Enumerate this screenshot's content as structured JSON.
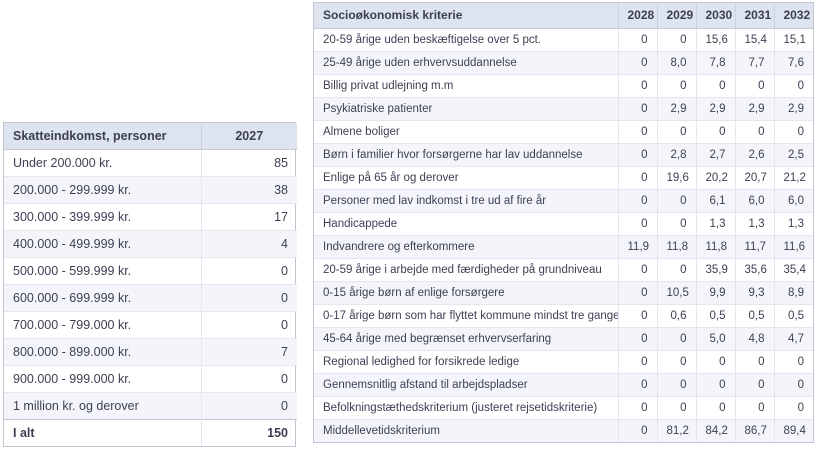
{
  "left_table": {
    "header": {
      "label": "Skatteindkomst, personer",
      "year": "2027"
    },
    "rows": [
      {
        "label": "Under 200.000 kr.",
        "value": "85"
      },
      {
        "label": "200.000 - 299.999 kr.",
        "value": "38"
      },
      {
        "label": "300.000 - 399.999 kr.",
        "value": "17"
      },
      {
        "label": "400.000 - 499.999 kr.",
        "value": "4"
      },
      {
        "label": "500.000 - 599.999 kr.",
        "value": "0"
      },
      {
        "label": "600.000 - 699.999 kr.",
        "value": "0"
      },
      {
        "label": "700.000 - 799.000 kr.",
        "value": "0"
      },
      {
        "label": "800.000 - 899.000 kr.",
        "value": "7"
      },
      {
        "label": "900.000 - 999.000 kr.",
        "value": "0"
      },
      {
        "label": "1 million kr. og derover",
        "value": "0"
      }
    ],
    "total": {
      "label": "I alt",
      "value": "150"
    }
  },
  "right_table": {
    "header": {
      "label": "Socioøkonomisk kriterie",
      "years": [
        "2028",
        "2029",
        "2030",
        "2031",
        "2032"
      ]
    },
    "rows": [
      {
        "label": "20-59 årige uden beskæftigelse over 5 pct.",
        "values": [
          "0",
          "0",
          "15,6",
          "15,4",
          "15,1"
        ]
      },
      {
        "label": "25-49 årige uden erhvervsuddannelse",
        "values": [
          "0",
          "8,0",
          "7,8",
          "7,7",
          "7,6"
        ]
      },
      {
        "label": "Billig privat udlejning m.m",
        "values": [
          "0",
          "0",
          "0",
          "0",
          "0"
        ]
      },
      {
        "label": "Psykiatriske patienter",
        "values": [
          "0",
          "2,9",
          "2,9",
          "2,9",
          "2,9"
        ]
      },
      {
        "label": "Almene boliger",
        "values": [
          "0",
          "0",
          "0",
          "0",
          "0"
        ]
      },
      {
        "label": "Børn i familier hvor forsørgerne har lav uddannelse",
        "values": [
          "0",
          "2,8",
          "2,7",
          "2,6",
          "2,5"
        ]
      },
      {
        "label": "Enlige på 65 år og derover",
        "values": [
          "0",
          "19,6",
          "20,2",
          "20,7",
          "21,2"
        ]
      },
      {
        "label": "Personer med lav indkomst i tre ud af fire år",
        "values": [
          "0",
          "0",
          "6,1",
          "6,0",
          "6,0"
        ]
      },
      {
        "label": "Handicappede",
        "values": [
          "0",
          "0",
          "1,3",
          "1,3",
          "1,3"
        ]
      },
      {
        "label": "Indvandrere og efterkommere",
        "values": [
          "11,9",
          "11,8",
          "11,8",
          "11,7",
          "11,6"
        ]
      },
      {
        "label": "20-59 årige i arbejde med færdigheder på grundniveau",
        "values": [
          "0",
          "0",
          "35,9",
          "35,6",
          "35,4"
        ]
      },
      {
        "label": "0-15 årige børn af enlige forsørgere",
        "values": [
          "0",
          "10,5",
          "9,9",
          "9,3",
          "8,9"
        ]
      },
      {
        "label": "0-17 årige børn som har flyttet kommune mindst tre gange",
        "values": [
          "0",
          "0,6",
          "0,5",
          "0,5",
          "0,5"
        ]
      },
      {
        "label": "45-64 årige med begrænset erhvervserfaring",
        "values": [
          "0",
          "0",
          "5,0",
          "4,8",
          "4,7"
        ]
      },
      {
        "label": "Regional ledighed for forsikrede ledige",
        "values": [
          "0",
          "0",
          "0",
          "0",
          "0"
        ]
      },
      {
        "label": "Gennemsnitlig afstand til arbejdspladser",
        "values": [
          "0",
          "0",
          "0",
          "0",
          "0"
        ]
      },
      {
        "label": "Befolkningstæthedskriterium (justeret rejsetidskriterie)",
        "values": [
          "0",
          "0",
          "0",
          "0",
          "0"
        ]
      },
      {
        "label": "Middellevetidskriterium",
        "values": [
          "0",
          "81,2",
          "84,2",
          "86,7",
          "89,4"
        ]
      }
    ]
  },
  "colors": {
    "header_bg": "#dde3ef",
    "row_alt_bg": "#f4f5fb",
    "border": "#e3e5ef",
    "border_strong": "#c2c6d2",
    "text": "#3c3f52"
  }
}
